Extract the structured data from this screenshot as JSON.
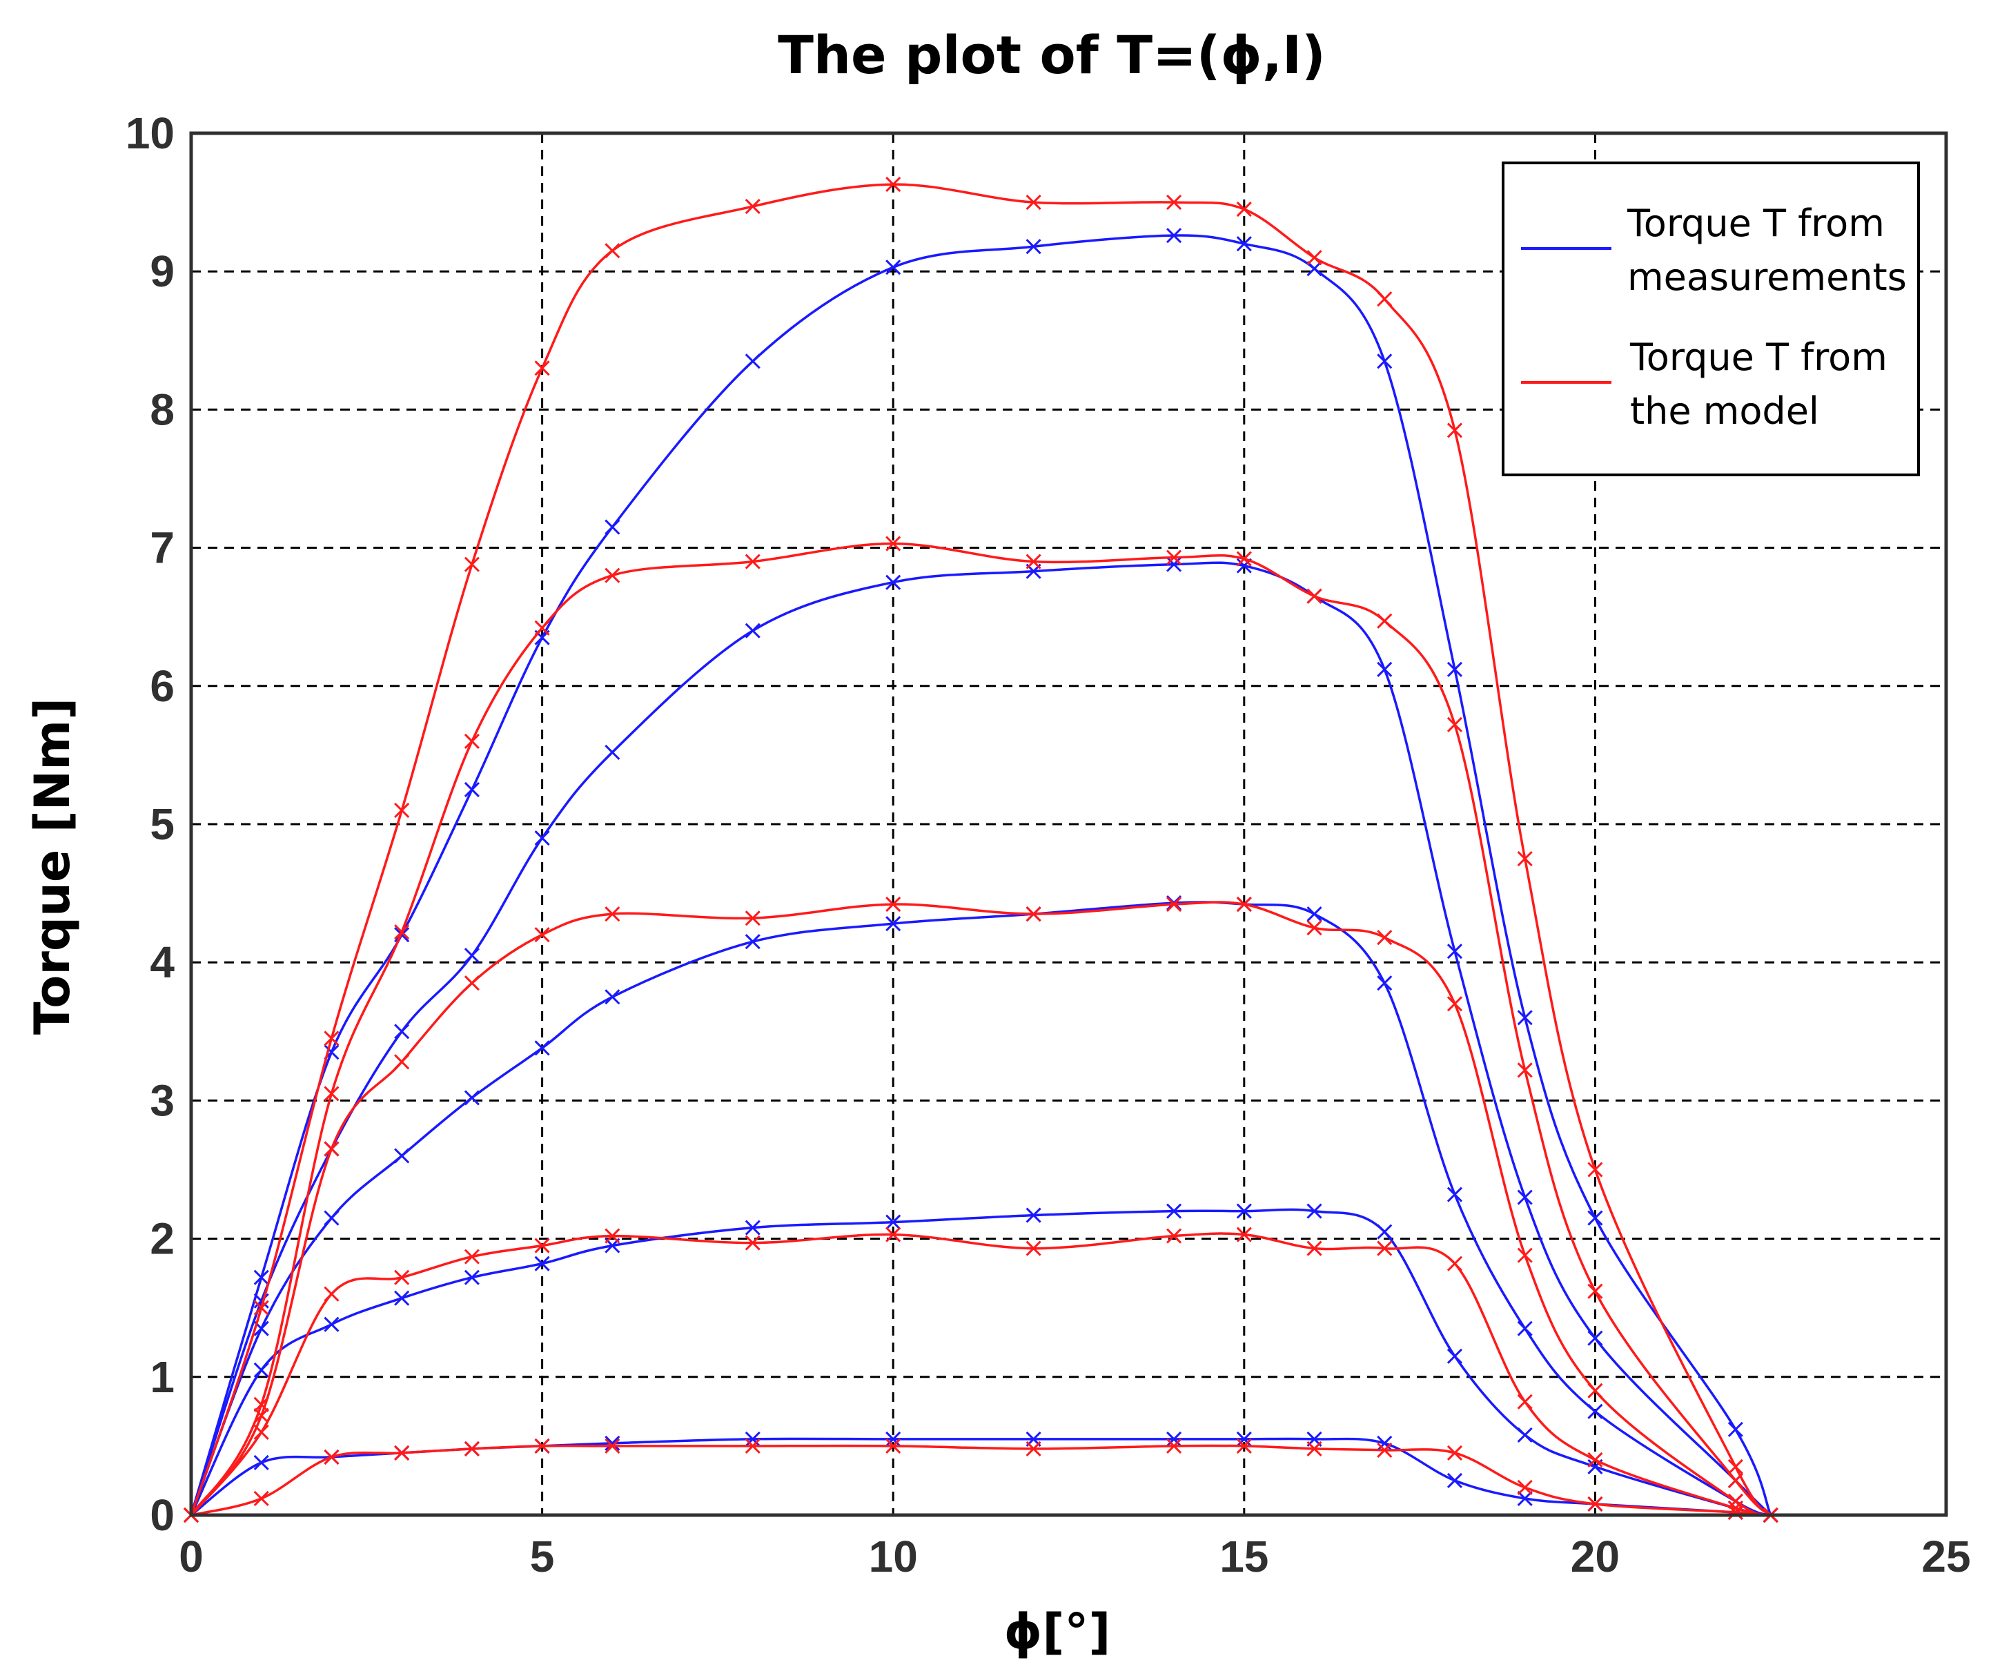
{
  "chart_data": {
    "type": "line",
    "title": "The plot of T=(ϕ,I)",
    "xlabel": "ϕ[°]",
    "ylabel": "Torque [Nm]",
    "xlim": [
      0,
      25
    ],
    "ylim": [
      0,
      10
    ],
    "xticks": [
      0,
      5,
      10,
      15,
      20,
      25
    ],
    "yticks": [
      0,
      1,
      2,
      3,
      4,
      5,
      6,
      7,
      8,
      9,
      10
    ],
    "grid": true,
    "legend_position": "top-right",
    "legend": [
      {
        "label_line1": "Torque T from",
        "label_line2": "measurements",
        "color": "#1a1aff"
      },
      {
        "label_line1": "Torque T from",
        "label_line2": "the model",
        "color": "#ff1a1a"
      }
    ],
    "series": [
      {
        "name": "Torque T from measurements",
        "group": "measurements",
        "color": "#1a1aff",
        "x": [
          0,
          1,
          2,
          3,
          4,
          5,
          6,
          8,
          10,
          12,
          14,
          15,
          16,
          17,
          18,
          19,
          20,
          22,
          22.5
        ],
        "y": [
          0,
          0.38,
          0.42,
          0.45,
          0.48,
          0.5,
          0.52,
          0.55,
          0.55,
          0.55,
          0.55,
          0.55,
          0.55,
          0.52,
          0.25,
          0.12,
          0.08,
          0.02,
          0
        ]
      },
      {
        "name": "Torque T from measurements",
        "group": "measurements",
        "color": "#1a1aff",
        "x": [
          0,
          1,
          2,
          3,
          4,
          5,
          6,
          8,
          10,
          12,
          14,
          15,
          16,
          17,
          18,
          19,
          20,
          22,
          22.5
        ],
        "y": [
          0,
          1.05,
          1.38,
          1.57,
          1.72,
          1.82,
          1.95,
          2.08,
          2.12,
          2.17,
          2.2,
          2.2,
          2.2,
          2.05,
          1.15,
          0.58,
          0.35,
          0.05,
          0
        ]
      },
      {
        "name": "Torque T from measurements",
        "group": "measurements",
        "color": "#1a1aff",
        "x": [
          0,
          1,
          2,
          3,
          4,
          5,
          6,
          8,
          10,
          12,
          14,
          15,
          16,
          17,
          18,
          19,
          20,
          22,
          22.5
        ],
        "y": [
          0,
          1.35,
          2.15,
          2.6,
          3.02,
          3.38,
          3.75,
          4.15,
          4.28,
          4.35,
          4.43,
          4.42,
          4.35,
          3.85,
          2.32,
          1.35,
          0.75,
          0.1,
          0
        ]
      },
      {
        "name": "Torque T from measurements",
        "group": "measurements",
        "color": "#1a1aff",
        "x": [
          0,
          1,
          2,
          3,
          4,
          5,
          6,
          8,
          10,
          12,
          14,
          15,
          16,
          17,
          18,
          19,
          20,
          22,
          22.5
        ],
        "y": [
          0,
          1.55,
          2.65,
          3.5,
          4.05,
          4.9,
          5.52,
          6.4,
          6.75,
          6.83,
          6.88,
          6.87,
          6.65,
          6.12,
          4.08,
          2.3,
          1.28,
          0.25,
          0
        ]
      },
      {
        "name": "Torque T from measurements",
        "group": "measurements",
        "color": "#1a1aff",
        "x": [
          0,
          1,
          2,
          3,
          4,
          5,
          6,
          8,
          10,
          12,
          14,
          15,
          16,
          17,
          18,
          19,
          20,
          22,
          22.5
        ],
        "y": [
          0,
          1.72,
          3.35,
          4.2,
          5.25,
          6.35,
          7.15,
          8.35,
          9.03,
          9.18,
          9.26,
          9.2,
          9.02,
          8.35,
          6.12,
          3.6,
          2.15,
          0.62,
          0
        ]
      },
      {
        "name": "Torque T from the model",
        "group": "model",
        "color": "#ff1a1a",
        "x": [
          0,
          1,
          2,
          3,
          4,
          5,
          6,
          8,
          10,
          12,
          14,
          15,
          16,
          17,
          18,
          19,
          20,
          22,
          22.5
        ],
        "y": [
          0,
          0.12,
          0.42,
          0.45,
          0.48,
          0.5,
          0.5,
          0.5,
          0.5,
          0.48,
          0.5,
          0.5,
          0.48,
          0.47,
          0.45,
          0.2,
          0.08,
          0.02,
          0
        ]
      },
      {
        "name": "Torque T from the model",
        "group": "model",
        "color": "#ff1a1a",
        "x": [
          0,
          1,
          2,
          3,
          4,
          5,
          6,
          8,
          10,
          12,
          14,
          15,
          16,
          17,
          18,
          19,
          20,
          22,
          22.5
        ],
        "y": [
          0,
          0.6,
          1.6,
          1.72,
          1.87,
          1.95,
          2.02,
          1.97,
          2.03,
          1.93,
          2.02,
          2.03,
          1.93,
          1.93,
          1.82,
          0.82,
          0.4,
          0.05,
          0
        ]
      },
      {
        "name": "Torque T from the model",
        "group": "model",
        "color": "#ff1a1a",
        "x": [
          0,
          1,
          2,
          3,
          4,
          5,
          6,
          8,
          10,
          12,
          14,
          15,
          16,
          17,
          18,
          19,
          20,
          22,
          22.5
        ],
        "y": [
          0,
          0.72,
          2.65,
          3.28,
          3.85,
          4.2,
          4.35,
          4.32,
          4.42,
          4.35,
          4.42,
          4.42,
          4.25,
          4.18,
          3.7,
          1.88,
          0.9,
          0.1,
          0
        ]
      },
      {
        "name": "Torque T from the model",
        "group": "model",
        "color": "#ff1a1a",
        "x": [
          0,
          1,
          2,
          3,
          4,
          5,
          6,
          8,
          10,
          12,
          14,
          15,
          16,
          17,
          18,
          19,
          20,
          22,
          22.5
        ],
        "y": [
          0,
          0.8,
          3.05,
          4.22,
          5.6,
          6.42,
          6.8,
          6.9,
          7.03,
          6.9,
          6.93,
          6.92,
          6.65,
          6.47,
          5.72,
          3.22,
          1.62,
          0.25,
          0
        ]
      },
      {
        "name": "Torque T from the model",
        "group": "model",
        "color": "#ff1a1a",
        "x": [
          0,
          1,
          2,
          3,
          4,
          5,
          6,
          8,
          10,
          12,
          14,
          15,
          16,
          17,
          18,
          19,
          20,
          22,
          22.5
        ],
        "y": [
          0,
          1.5,
          3.45,
          5.1,
          6.88,
          8.3,
          9.15,
          9.47,
          9.63,
          9.5,
          9.5,
          9.45,
          9.1,
          8.8,
          7.85,
          4.75,
          2.5,
          0.35,
          0
        ]
      }
    ]
  }
}
